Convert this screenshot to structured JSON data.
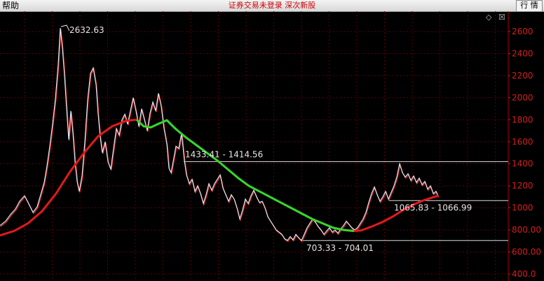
{
  "toolbar": {
    "help_label": "帮助",
    "status_text": "证券交易未登录  深次新股",
    "quote_button_label": "行 情"
  },
  "panel": {
    "diamond_icon": "diamond-icon",
    "close_icon": "close-box-icon"
  },
  "chart_data": {
    "type": "line",
    "y_ticks": [
      "2600",
      "2400",
      "2200",
      "2000",
      "1800",
      "1600",
      "1400",
      "1200",
      "1000",
      "800.00",
      "600.00",
      "400.0"
    ],
    "ylim": [
      400,
      2700
    ],
    "annotations": {
      "peak": "2632.63",
      "upper_level": "1433.41 - 1414.56",
      "lower_level": "703.33 - 704.01",
      "right_level": "1065.83 - 1066.99"
    },
    "levels": [
      1420,
      1066,
      704
    ],
    "price": [
      {
        "x": 0,
        "y": 840
      },
      {
        "x": 8,
        "y": 880
      },
      {
        "x": 15,
        "y": 940
      },
      {
        "x": 22,
        "y": 990
      },
      {
        "x": 28,
        "y": 1060
      },
      {
        "x": 35,
        "y": 1110
      },
      {
        "x": 40,
        "y": 1050
      },
      {
        "x": 47,
        "y": 960
      },
      {
        "x": 53,
        "y": 1010
      },
      {
        "x": 58,
        "y": 1120
      },
      {
        "x": 63,
        "y": 1230
      },
      {
        "x": 67,
        "y": 1380
      },
      {
        "x": 71,
        "y": 1560
      },
      {
        "x": 75,
        "y": 1760
      },
      {
        "x": 79,
        "y": 1990
      },
      {
        "x": 83,
        "y": 2300
      },
      {
        "x": 86,
        "y": 2632
      },
      {
        "x": 89,
        "y": 2450
      },
      {
        "x": 92,
        "y": 2200
      },
      {
        "x": 95,
        "y": 1900
      },
      {
        "x": 98,
        "y": 1620
      },
      {
        "x": 101,
        "y": 1880
      },
      {
        "x": 104,
        "y": 1680
      },
      {
        "x": 107,
        "y": 1420
      },
      {
        "x": 110,
        "y": 1240
      },
      {
        "x": 113,
        "y": 1150
      },
      {
        "x": 117,
        "y": 1290
      },
      {
        "x": 121,
        "y": 1600
      },
      {
        "x": 125,
        "y": 1980
      },
      {
        "x": 129,
        "y": 2220
      },
      {
        "x": 133,
        "y": 2270
      },
      {
        "x": 137,
        "y": 2120
      },
      {
        "x": 140,
        "y": 1850
      },
      {
        "x": 143,
        "y": 1640
      },
      {
        "x": 146,
        "y": 1500
      },
      {
        "x": 150,
        "y": 1600
      },
      {
        "x": 154,
        "y": 1420
      },
      {
        "x": 158,
        "y": 1350
      },
      {
        "x": 162,
        "y": 1540
      },
      {
        "x": 166,
        "y": 1720
      },
      {
        "x": 170,
        "y": 1660
      },
      {
        "x": 174,
        "y": 1800
      },
      {
        "x": 178,
        "y": 1850
      },
      {
        "x": 182,
        "y": 1760
      },
      {
        "x": 186,
        "y": 1880
      },
      {
        "x": 190,
        "y": 2000
      },
      {
        "x": 194,
        "y": 1880
      },
      {
        "x": 198,
        "y": 1740
      },
      {
        "x": 202,
        "y": 1900
      },
      {
        "x": 206,
        "y": 1800
      },
      {
        "x": 210,
        "y": 1700
      },
      {
        "x": 214,
        "y": 1860
      },
      {
        "x": 218,
        "y": 1960
      },
      {
        "x": 222,
        "y": 1880
      },
      {
        "x": 226,
        "y": 2040
      },
      {
        "x": 230,
        "y": 1920
      },
      {
        "x": 234,
        "y": 1720
      },
      {
        "x": 238,
        "y": 1580
      },
      {
        "x": 241,
        "y": 1360
      },
      {
        "x": 244,
        "y": 1320
      },
      {
        "x": 247,
        "y": 1420
      },
      {
        "x": 251,
        "y": 1560
      },
      {
        "x": 255,
        "y": 1540
      },
      {
        "x": 259,
        "y": 1680
      },
      {
        "x": 263,
        "y": 1430
      },
      {
        "x": 266,
        "y": 1300
      },
      {
        "x": 270,
        "y": 1220
      },
      {
        "x": 274,
        "y": 1260
      },
      {
        "x": 278,
        "y": 1150
      },
      {
        "x": 282,
        "y": 1200
      },
      {
        "x": 286,
        "y": 1130
      },
      {
        "x": 290,
        "y": 1040
      },
      {
        "x": 294,
        "y": 1120
      },
      {
        "x": 298,
        "y": 1220
      },
      {
        "x": 302,
        "y": 1160
      },
      {
        "x": 306,
        "y": 1220
      },
      {
        "x": 310,
        "y": 1260
      },
      {
        "x": 314,
        "y": 1300
      },
      {
        "x": 318,
        "y": 1180
      },
      {
        "x": 322,
        "y": 1120
      },
      {
        "x": 326,
        "y": 1060
      },
      {
        "x": 330,
        "y": 1120
      },
      {
        "x": 334,
        "y": 1080
      },
      {
        "x": 338,
        "y": 1000
      },
      {
        "x": 342,
        "y": 900
      },
      {
        "x": 346,
        "y": 980
      },
      {
        "x": 350,
        "y": 1080
      },
      {
        "x": 354,
        "y": 1040
      },
      {
        "x": 358,
        "y": 1110
      },
      {
        "x": 362,
        "y": 1160
      },
      {
        "x": 366,
        "y": 1100
      },
      {
        "x": 370,
        "y": 1050
      },
      {
        "x": 374,
        "y": 1060
      },
      {
        "x": 378,
        "y": 1000
      },
      {
        "x": 382,
        "y": 920
      },
      {
        "x": 386,
        "y": 880
      },
      {
        "x": 390,
        "y": 840
      },
      {
        "x": 394,
        "y": 800
      },
      {
        "x": 398,
        "y": 780
      },
      {
        "x": 402,
        "y": 760
      },
      {
        "x": 406,
        "y": 720
      },
      {
        "x": 410,
        "y": 705
      },
      {
        "x": 414,
        "y": 740
      },
      {
        "x": 418,
        "y": 710
      },
      {
        "x": 422,
        "y": 760
      },
      {
        "x": 426,
        "y": 730
      },
      {
        "x": 430,
        "y": 704
      },
      {
        "x": 434,
        "y": 760
      },
      {
        "x": 438,
        "y": 820
      },
      {
        "x": 442,
        "y": 860
      },
      {
        "x": 446,
        "y": 900
      },
      {
        "x": 450,
        "y": 870
      },
      {
        "x": 454,
        "y": 830
      },
      {
        "x": 458,
        "y": 800
      },
      {
        "x": 462,
        "y": 760
      },
      {
        "x": 466,
        "y": 790
      },
      {
        "x": 470,
        "y": 820
      },
      {
        "x": 474,
        "y": 780
      },
      {
        "x": 478,
        "y": 800
      },
      {
        "x": 482,
        "y": 770
      },
      {
        "x": 486,
        "y": 810
      },
      {
        "x": 490,
        "y": 840
      },
      {
        "x": 494,
        "y": 880
      },
      {
        "x": 498,
        "y": 850
      },
      {
        "x": 502,
        "y": 820
      },
      {
        "x": 506,
        "y": 800
      },
      {
        "x": 510,
        "y": 820
      },
      {
        "x": 514,
        "y": 860
      },
      {
        "x": 518,
        "y": 900
      },
      {
        "x": 522,
        "y": 960
      },
      {
        "x": 526,
        "y": 1050
      },
      {
        "x": 530,
        "y": 1130
      },
      {
        "x": 534,
        "y": 1190
      },
      {
        "x": 538,
        "y": 1120
      },
      {
        "x": 542,
        "y": 1060
      },
      {
        "x": 546,
        "y": 1100
      },
      {
        "x": 550,
        "y": 1150
      },
      {
        "x": 554,
        "y": 1080
      },
      {
        "x": 558,
        "y": 1140
      },
      {
        "x": 562,
        "y": 1200
      },
      {
        "x": 566,
        "y": 1280
      },
      {
        "x": 570,
        "y": 1400
      },
      {
        "x": 574,
        "y": 1320
      },
      {
        "x": 578,
        "y": 1280
      },
      {
        "x": 582,
        "y": 1310
      },
      {
        "x": 586,
        "y": 1250
      },
      {
        "x": 590,
        "y": 1290
      },
      {
        "x": 594,
        "y": 1230
      },
      {
        "x": 598,
        "y": 1270
      },
      {
        "x": 602,
        "y": 1210
      },
      {
        "x": 606,
        "y": 1240
      },
      {
        "x": 610,
        "y": 1170
      },
      {
        "x": 614,
        "y": 1200
      },
      {
        "x": 618,
        "y": 1130
      },
      {
        "x": 622,
        "y": 1150
      },
      {
        "x": 625,
        "y": 1105
      }
    ],
    "ma": [
      {
        "x": 0,
        "y": 750
      },
      {
        "x": 20,
        "y": 790
      },
      {
        "x": 40,
        "y": 860
      },
      {
        "x": 60,
        "y": 970
      },
      {
        "x": 80,
        "y": 1130
      },
      {
        "x": 100,
        "y": 1330
      },
      {
        "x": 120,
        "y": 1500
      },
      {
        "x": 140,
        "y": 1650
      },
      {
        "x": 160,
        "y": 1740
      },
      {
        "x": 180,
        "y": 1790
      },
      {
        "x": 195,
        "y": 1800
      },
      {
        "x": 205,
        "y": 1740
      },
      {
        "x": 215,
        "y": 1730
      },
      {
        "x": 225,
        "y": 1760
      },
      {
        "x": 238,
        "y": 1795
      },
      {
        "x": 250,
        "y": 1720
      },
      {
        "x": 265,
        "y": 1640
      },
      {
        "x": 280,
        "y": 1570
      },
      {
        "x": 295,
        "y": 1500
      },
      {
        "x": 310,
        "y": 1430
      },
      {
        "x": 325,
        "y": 1350
      },
      {
        "x": 340,
        "y": 1270
      },
      {
        "x": 355,
        "y": 1200
      },
      {
        "x": 370,
        "y": 1150
      },
      {
        "x": 385,
        "y": 1100
      },
      {
        "x": 400,
        "y": 1050
      },
      {
        "x": 415,
        "y": 1000
      },
      {
        "x": 430,
        "y": 950
      },
      {
        "x": 445,
        "y": 900
      },
      {
        "x": 460,
        "y": 860
      },
      {
        "x": 475,
        "y": 820
      },
      {
        "x": 490,
        "y": 800
      },
      {
        "x": 505,
        "y": 790
      },
      {
        "x": 515,
        "y": 795
      },
      {
        "x": 530,
        "y": 830
      },
      {
        "x": 545,
        "y": 870
      },
      {
        "x": 560,
        "y": 920
      },
      {
        "x": 575,
        "y": 980
      },
      {
        "x": 590,
        "y": 1030
      },
      {
        "x": 605,
        "y": 1070
      },
      {
        "x": 625,
        "y": 1110
      }
    ],
    "ma_green_segments": [
      [
        190,
        250
      ],
      [
        238,
        510
      ]
    ]
  }
}
